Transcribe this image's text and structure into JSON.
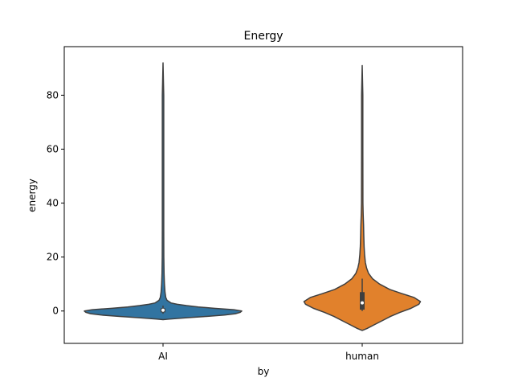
{
  "chart_data": {
    "type": "violin",
    "title": "Energy",
    "xlabel": "by",
    "ylabel": "energy",
    "categories": [
      "AI",
      "human"
    ],
    "ylim": [
      -12,
      98
    ],
    "yticks": [
      0,
      20,
      40,
      60,
      80
    ],
    "grid": false,
    "legend": "none",
    "colors": {
      "AI": "#3274a1",
      "human": "#e1812c",
      "outline": "#3f3f3f",
      "box": "#3f3f3f",
      "median": "#ffffff"
    },
    "series": [
      {
        "name": "AI",
        "min": -3,
        "max": 92,
        "q1": -0.5,
        "median": 0.3,
        "q3": 1,
        "whisker_low": -1,
        "whisker_high": 2
      },
      {
        "name": "human",
        "min": -7,
        "max": 91,
        "q1": 0.5,
        "median": 3,
        "q3": 7,
        "whisker_low": 0,
        "whisker_high": 12
      }
    ]
  }
}
